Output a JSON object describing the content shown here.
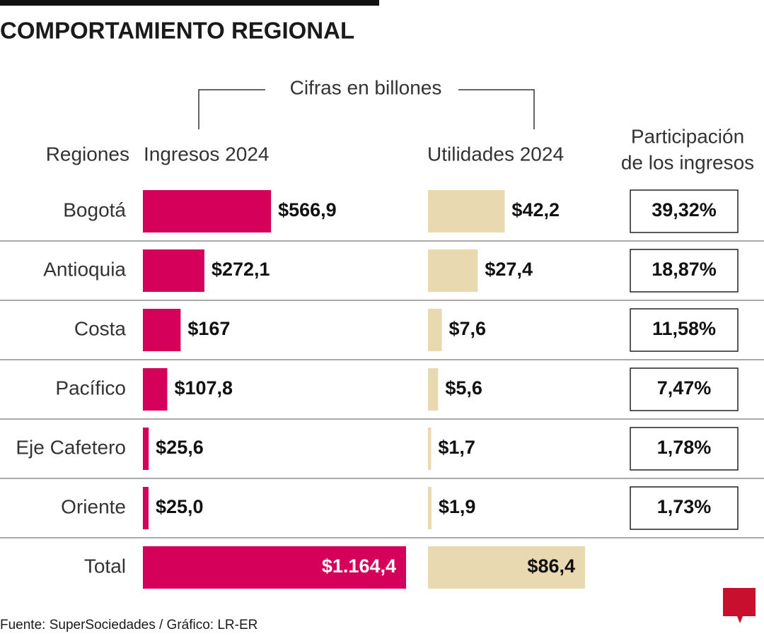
{
  "chart_data": {
    "type": "bar",
    "orientation": "horizontal",
    "title": "COMPORTAMIENTO REGIONAL",
    "note": "Cifras en billones",
    "category_label": "Regiones",
    "categories": [
      "Bogotá",
      "Antioquia",
      "Costa",
      "Pacífico",
      "Eje Cafetero",
      "Oriente"
    ],
    "series": [
      {
        "name": "Ingresos 2024",
        "color": "#d4005a",
        "values": [
          566.9,
          272.1,
          167,
          107.8,
          25.6,
          25.0
        ],
        "value_labels": [
          "$566,9",
          "$272,1",
          "$167",
          "$107,8",
          "$25,6",
          "$25,0"
        ]
      },
      {
        "name": "Utilidades 2024",
        "color": "#e9d9b1",
        "values": [
          42.2,
          27.4,
          7.6,
          5.6,
          1.7,
          1.9
        ],
        "value_labels": [
          "$42,2",
          "$27,4",
          "$7,6",
          "$5,6",
          "$1,7",
          "$1,9"
        ]
      }
    ],
    "share": {
      "name": [
        "Participación",
        "de los ingresos"
      ],
      "values": [
        39.32,
        18.87,
        11.58,
        7.47,
        1.78,
        1.73
      ],
      "value_labels": [
        "39,32%",
        "18,87%",
        "11,58%",
        "7,47%",
        "1,78%",
        "1,73%"
      ]
    },
    "total": {
      "label": "Total",
      "values": [
        1164.4,
        86.4
      ],
      "value_labels": [
        "$1.164,4",
        "$86,4"
      ]
    },
    "source": "Fuente: SuperSociedades / Gráfico: LR-ER",
    "logo": "LR"
  }
}
